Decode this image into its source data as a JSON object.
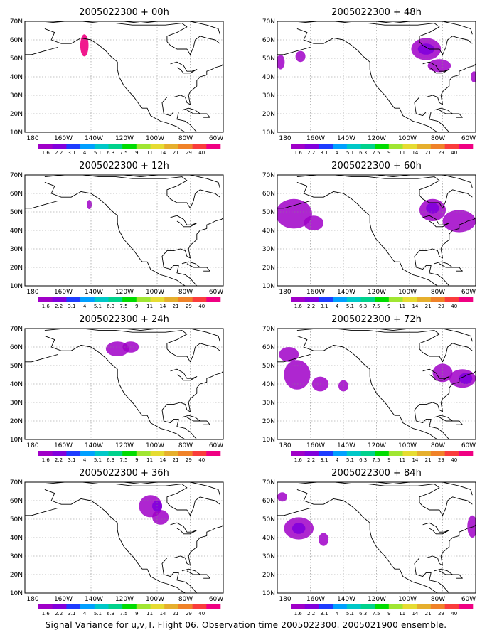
{
  "caption": "Signal Variance for u,v,T. Flight 06. Observation time 2005022300. 2005021900 ensemble.",
  "axes": {
    "x_ticks": [
      "180",
      "160W",
      "140W",
      "120W",
      "100W",
      "80W",
      "60W"
    ],
    "y_ticks": [
      "70N",
      "60N",
      "50N",
      "40N",
      "30N",
      "20N",
      "10N"
    ]
  },
  "colorbar": {
    "labels": [
      "1.6",
      "2.2",
      "3.1",
      "4",
      "5.1",
      "6.3",
      "7.5",
      "9",
      "11",
      "14",
      "21",
      "29",
      "40"
    ],
    "colors": [
      "#a000c8",
      "#8200dc",
      "#1e3cff",
      "#00a0ff",
      "#00c8c8",
      "#00d28c",
      "#00dc00",
      "#a0e632",
      "#e6dc32",
      "#e6af2d",
      "#f08228",
      "#fa3c3c",
      "#f00082"
    ]
  },
  "shade_colors": {
    "light": "#a000c8",
    "dark": "#8200dc",
    "core": "#1e3cff",
    "high": "#f00082"
  },
  "panels": [
    {
      "title": "2005022300 + 00h",
      "regions": [
        {
          "lon": -144,
          "lat": 57,
          "rlon": 2.5,
          "rlat": 6,
          "level": "high"
        }
      ]
    },
    {
      "title": "2005022300 + 12h",
      "regions": [
        {
          "lon": -141,
          "lat": 54,
          "rlon": 1.5,
          "rlat": 2.5,
          "level": "light"
        }
      ]
    },
    {
      "title": "2005022300 + 24h",
      "regions": [
        {
          "lon": -124,
          "lat": 59,
          "rlon": 7,
          "rlat": 4,
          "level": "light"
        },
        {
          "lon": -116,
          "lat": 60,
          "rlon": 5,
          "rlat": 3,
          "level": "light"
        }
      ]
    },
    {
      "title": "2005022300 + 36h",
      "regions": [
        {
          "lon": -104,
          "lat": 57,
          "rlon": 7,
          "rlat": 6,
          "level": "light"
        },
        {
          "lon": -98,
          "lat": 51,
          "rlon": 5,
          "rlat": 4,
          "level": "light"
        },
        {
          "lon": -100,
          "lat": 57,
          "rlon": 3,
          "rlat": 3,
          "level": "dark"
        }
      ]
    },
    {
      "title": "2005022300 + 48h",
      "regions": [
        {
          "lon": -178,
          "lat": 48,
          "rlon": 2.5,
          "rlat": 4,
          "level": "light"
        },
        {
          "lon": -166,
          "lat": 51,
          "rlon": 3,
          "rlat": 3,
          "level": "light"
        },
        {
          "lon": -90,
          "lat": 55,
          "rlon": 9,
          "rlat": 6,
          "level": "light"
        },
        {
          "lon": -82,
          "lat": 46,
          "rlon": 7,
          "rlat": 3.5,
          "level": "light"
        },
        {
          "lon": -61,
          "lat": 40,
          "rlon": 2,
          "rlat": 3,
          "level": "light"
        },
        {
          "lon": -90,
          "lat": 55,
          "rlon": 5,
          "rlat": 3,
          "level": "dark"
        }
      ]
    },
    {
      "title": "2005022300 + 60h",
      "regions": [
        {
          "lon": -170,
          "lat": 49,
          "rlon": 11,
          "rlat": 8,
          "level": "light"
        },
        {
          "lon": -158,
          "lat": 44,
          "rlon": 6,
          "rlat": 4,
          "level": "light"
        },
        {
          "lon": -86,
          "lat": 51,
          "rlon": 8,
          "rlat": 6,
          "level": "light"
        },
        {
          "lon": -70,
          "lat": 45,
          "rlon": 10,
          "rlat": 6,
          "level": "light"
        },
        {
          "lon": -86,
          "lat": 52,
          "rlon": 4,
          "rlat": 3,
          "level": "dark"
        }
      ]
    },
    {
      "title": "2005022300 + 72h",
      "regions": [
        {
          "lon": -173,
          "lat": 56,
          "rlon": 6,
          "rlat": 4,
          "level": "light"
        },
        {
          "lon": -168,
          "lat": 45,
          "rlon": 8,
          "rlat": 8,
          "level": "light"
        },
        {
          "lon": -154,
          "lat": 40,
          "rlon": 5,
          "rlat": 4,
          "level": "light"
        },
        {
          "lon": -140,
          "lat": 39,
          "rlon": 3,
          "rlat": 3,
          "level": "light"
        },
        {
          "lon": -80,
          "lat": 46,
          "rlon": 6,
          "rlat": 5,
          "level": "light"
        },
        {
          "lon": -68,
          "lat": 43,
          "rlon": 8,
          "rlat": 5,
          "level": "light"
        },
        {
          "lon": -66,
          "lat": 43,
          "rlon": 4,
          "rlat": 3,
          "level": "dark"
        }
      ]
    },
    {
      "title": "2005022300 + 84h",
      "regions": [
        {
          "lon": -177,
          "lat": 62,
          "rlon": 3,
          "rlat": 2.5,
          "level": "light"
        },
        {
          "lon": -167,
          "lat": 45,
          "rlon": 9,
          "rlat": 6,
          "level": "light"
        },
        {
          "lon": -152,
          "lat": 39,
          "rlon": 3,
          "rlat": 3.5,
          "level": "light"
        },
        {
          "lon": -62,
          "lat": 46,
          "rlon": 3,
          "rlat": 6,
          "level": "light"
        },
        {
          "lon": -167,
          "lat": 45,
          "rlon": 4,
          "rlat": 3,
          "level": "dark"
        }
      ]
    }
  ]
}
